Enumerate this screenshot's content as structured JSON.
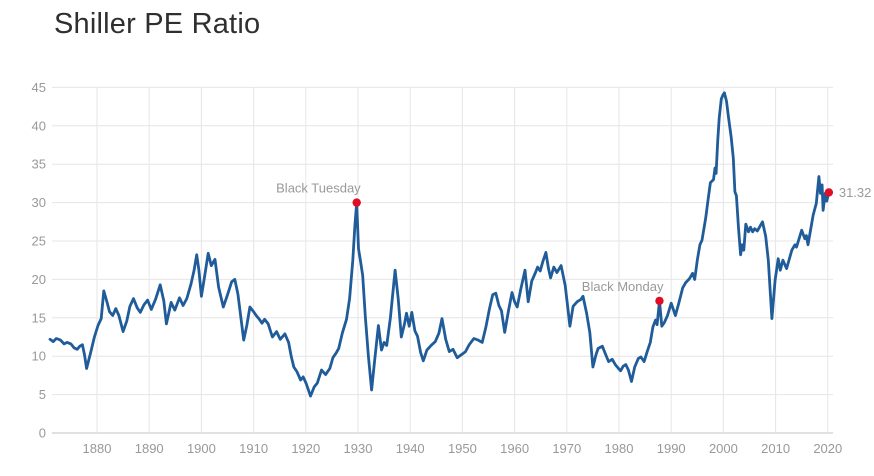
{
  "title": "Shiller PE Ratio",
  "colors": {
    "line": "#1f5c99",
    "marker": "#e00d25",
    "grid": "#e6e6e6",
    "axis_line": "#c3c3c3",
    "tick_label": "#999999",
    "annotation_text": "#999999",
    "title_text": "#2f2f2f",
    "background": "#ffffff"
  },
  "chart_data": {
    "type": "line",
    "title": "Shiller PE Ratio",
    "xlabel": "",
    "ylabel": "",
    "xlim": [
      1871,
      2021.5
    ],
    "ylim": [
      0,
      45
    ],
    "x_ticks": [
      1880,
      1890,
      1900,
      1910,
      1920,
      1930,
      1940,
      1950,
      1960,
      1970,
      1980,
      1990,
      2000,
      2010,
      2020
    ],
    "y_ticks": [
      0,
      5,
      10,
      15,
      20,
      25,
      30,
      35,
      40,
      45
    ],
    "grid": true,
    "legend": "none",
    "last_value_label": "31.32",
    "annotations": [
      {
        "label": "Black Tuesday",
        "year": 1929.75,
        "value": 30.0,
        "anchor": "above-left"
      },
      {
        "label": "Black Monday",
        "year": 1987.75,
        "value": 17.2,
        "anchor": "above-left"
      },
      {
        "label": "31.32",
        "year": 2020.2,
        "value": 31.32,
        "anchor": "right"
      }
    ],
    "series": [
      {
        "name": "Shiller PE",
        "points": [
          [
            1871.0,
            12.2
          ],
          [
            1871.6,
            11.9
          ],
          [
            1872.2,
            12.3
          ],
          [
            1873.0,
            12.1
          ],
          [
            1873.7,
            11.6
          ],
          [
            1874.3,
            11.8
          ],
          [
            1875.0,
            11.6
          ],
          [
            1875.6,
            11.1
          ],
          [
            1876.2,
            10.9
          ],
          [
            1876.7,
            11.3
          ],
          [
            1877.2,
            11.5
          ],
          [
            1877.6,
            10.2
          ],
          [
            1878.0,
            8.4
          ],
          [
            1878.8,
            10.5
          ],
          [
            1879.5,
            12.5
          ],
          [
            1880.2,
            14.0
          ],
          [
            1880.8,
            14.9
          ],
          [
            1881.3,
            18.5
          ],
          [
            1881.9,
            17.1
          ],
          [
            1882.4,
            15.8
          ],
          [
            1883.0,
            15.3
          ],
          [
            1883.6,
            16.2
          ],
          [
            1884.2,
            15.3
          ],
          [
            1885.0,
            13.2
          ],
          [
            1885.7,
            14.6
          ],
          [
            1886.3,
            16.5
          ],
          [
            1887.0,
            17.5
          ],
          [
            1887.7,
            16.3
          ],
          [
            1888.3,
            15.7
          ],
          [
            1889.0,
            16.7
          ],
          [
            1889.7,
            17.3
          ],
          [
            1890.4,
            16.1
          ],
          [
            1891.2,
            17.4
          ],
          [
            1892.1,
            19.3
          ],
          [
            1892.8,
            17.2
          ],
          [
            1893.3,
            14.2
          ],
          [
            1894.2,
            17.0
          ],
          [
            1894.9,
            16.0
          ],
          [
            1895.8,
            17.6
          ],
          [
            1896.5,
            16.6
          ],
          [
            1897.2,
            17.5
          ],
          [
            1898.0,
            19.4
          ],
          [
            1898.6,
            21.2
          ],
          [
            1899.1,
            23.2
          ],
          [
            1899.5,
            21.3
          ],
          [
            1900.0,
            17.8
          ],
          [
            1900.6,
            20.3
          ],
          [
            1901.3,
            23.4
          ],
          [
            1901.9,
            21.8
          ],
          [
            1902.6,
            22.6
          ],
          [
            1903.3,
            19.0
          ],
          [
            1904.2,
            16.4
          ],
          [
            1904.9,
            17.8
          ],
          [
            1905.8,
            19.7
          ],
          [
            1906.4,
            20.0
          ],
          [
            1907.0,
            18.1
          ],
          [
            1907.6,
            14.8
          ],
          [
            1908.1,
            12.1
          ],
          [
            1908.7,
            14.0
          ],
          [
            1909.3,
            16.4
          ],
          [
            1910.0,
            15.8
          ],
          [
            1910.5,
            15.3
          ],
          [
            1911.0,
            14.9
          ],
          [
            1911.6,
            14.3
          ],
          [
            1912.1,
            14.8
          ],
          [
            1912.8,
            14.2
          ],
          [
            1913.6,
            12.5
          ],
          [
            1914.4,
            13.2
          ],
          [
            1915.1,
            12.2
          ],
          [
            1916.0,
            12.9
          ],
          [
            1916.7,
            11.8
          ],
          [
            1917.2,
            10.0
          ],
          [
            1917.7,
            8.6
          ],
          [
            1918.3,
            8.0
          ],
          [
            1919.0,
            6.9
          ],
          [
            1919.5,
            7.3
          ],
          [
            1920.1,
            6.4
          ],
          [
            1920.9,
            4.8
          ],
          [
            1921.6,
            6.0
          ],
          [
            1922.2,
            6.5
          ],
          [
            1923.0,
            8.2
          ],
          [
            1923.8,
            7.6
          ],
          [
            1924.6,
            8.4
          ],
          [
            1925.2,
            9.8
          ],
          [
            1925.8,
            10.4
          ],
          [
            1926.3,
            11.0
          ],
          [
            1927.0,
            13.0
          ],
          [
            1927.8,
            14.8
          ],
          [
            1928.4,
            17.5
          ],
          [
            1929.0,
            22.5
          ],
          [
            1929.4,
            27.0
          ],
          [
            1929.75,
            30.0
          ],
          [
            1930.1,
            24.0
          ],
          [
            1930.5,
            22.3
          ],
          [
            1930.9,
            20.5
          ],
          [
            1931.4,
            15.2
          ],
          [
            1932.0,
            10.0
          ],
          [
            1932.6,
            5.6
          ],
          [
            1933.2,
            9.5
          ],
          [
            1933.9,
            14.0
          ],
          [
            1934.5,
            10.8
          ],
          [
            1935.0,
            11.8
          ],
          [
            1935.5,
            11.4
          ],
          [
            1936.2,
            15.0
          ],
          [
            1937.1,
            21.2
          ],
          [
            1937.7,
            17.5
          ],
          [
            1938.3,
            12.5
          ],
          [
            1938.9,
            14.2
          ],
          [
            1939.3,
            15.6
          ],
          [
            1939.8,
            13.9
          ],
          [
            1940.3,
            15.7
          ],
          [
            1940.9,
            13.3
          ],
          [
            1941.4,
            12.6
          ],
          [
            1942.0,
            10.5
          ],
          [
            1942.5,
            9.4
          ],
          [
            1943.2,
            10.8
          ],
          [
            1944.0,
            11.4
          ],
          [
            1944.8,
            11.9
          ],
          [
            1945.5,
            13.0
          ],
          [
            1946.1,
            14.9
          ],
          [
            1946.8,
            12.2
          ],
          [
            1947.5,
            10.6
          ],
          [
            1948.2,
            10.9
          ],
          [
            1949.0,
            9.8
          ],
          [
            1949.8,
            10.2
          ],
          [
            1950.6,
            10.6
          ],
          [
            1951.3,
            11.5
          ],
          [
            1952.2,
            12.3
          ],
          [
            1953.0,
            12.1
          ],
          [
            1953.8,
            11.8
          ],
          [
            1954.5,
            13.8
          ],
          [
            1955.2,
            16.2
          ],
          [
            1955.8,
            18.0
          ],
          [
            1956.4,
            18.2
          ],
          [
            1957.0,
            16.6
          ],
          [
            1957.5,
            15.9
          ],
          [
            1958.1,
            13.1
          ],
          [
            1958.8,
            15.8
          ],
          [
            1959.5,
            18.3
          ],
          [
            1960.0,
            17.1
          ],
          [
            1960.5,
            16.4
          ],
          [
            1961.2,
            18.8
          ],
          [
            1962.0,
            21.2
          ],
          [
            1962.6,
            17.1
          ],
          [
            1963.3,
            19.8
          ],
          [
            1964.0,
            20.9
          ],
          [
            1964.4,
            21.6
          ],
          [
            1964.9,
            21.1
          ],
          [
            1965.4,
            22.3
          ],
          [
            1966.0,
            23.5
          ],
          [
            1966.5,
            21.4
          ],
          [
            1966.9,
            20.2
          ],
          [
            1967.5,
            21.6
          ],
          [
            1968.1,
            20.9
          ],
          [
            1968.9,
            21.8
          ],
          [
            1969.7,
            19.2
          ],
          [
            1970.2,
            16.3
          ],
          [
            1970.6,
            13.9
          ],
          [
            1971.2,
            16.5
          ],
          [
            1972.0,
            17.1
          ],
          [
            1972.7,
            17.4
          ],
          [
            1973.1,
            17.8
          ],
          [
            1973.8,
            15.6
          ],
          [
            1974.4,
            13.1
          ],
          [
            1975.0,
            8.6
          ],
          [
            1975.6,
            10.2
          ],
          [
            1976.0,
            11.0
          ],
          [
            1976.8,
            11.3
          ],
          [
            1977.4,
            10.3
          ],
          [
            1978.0,
            9.3
          ],
          [
            1978.7,
            9.6
          ],
          [
            1979.3,
            8.9
          ],
          [
            1979.9,
            8.4
          ],
          [
            1980.3,
            8.1
          ],
          [
            1980.8,
            8.7
          ],
          [
            1981.3,
            8.9
          ],
          [
            1981.8,
            8.2
          ],
          [
            1982.4,
            6.7
          ],
          [
            1983.0,
            8.6
          ],
          [
            1983.7,
            9.7
          ],
          [
            1984.2,
            9.9
          ],
          [
            1984.8,
            9.3
          ],
          [
            1985.4,
            10.6
          ],
          [
            1986.0,
            11.8
          ],
          [
            1986.5,
            13.8
          ],
          [
            1987.0,
            14.7
          ],
          [
            1987.3,
            14.1
          ],
          [
            1987.75,
            17.2
          ],
          [
            1988.2,
            13.9
          ],
          [
            1988.7,
            14.4
          ],
          [
            1989.3,
            15.3
          ],
          [
            1990.0,
            16.9
          ],
          [
            1990.8,
            15.3
          ],
          [
            1991.5,
            17.0
          ],
          [
            1992.2,
            18.9
          ],
          [
            1992.8,
            19.6
          ],
          [
            1993.5,
            20.1
          ],
          [
            1994.1,
            20.8
          ],
          [
            1994.5,
            20.0
          ],
          [
            1995.0,
            22.5
          ],
          [
            1995.5,
            24.5
          ],
          [
            1995.9,
            25.1
          ],
          [
            1996.6,
            28.0
          ],
          [
            1997.1,
            30.6
          ],
          [
            1997.5,
            32.6
          ],
          [
            1998.1,
            33.0
          ],
          [
            1998.4,
            34.5
          ],
          [
            1998.6,
            33.8
          ],
          [
            1998.9,
            38.0
          ],
          [
            1999.2,
            41.0
          ],
          [
            1999.6,
            43.5
          ],
          [
            1999.9,
            44.0
          ],
          [
            2000.2,
            44.3
          ],
          [
            2000.6,
            43.2
          ],
          [
            2001.0,
            41.0
          ],
          [
            2001.5,
            38.5
          ],
          [
            2001.9,
            35.8
          ],
          [
            2002.2,
            31.4
          ],
          [
            2002.5,
            30.9
          ],
          [
            2002.9,
            26.7
          ],
          [
            2003.3,
            23.2
          ],
          [
            2003.6,
            24.5
          ],
          [
            2003.9,
            23.8
          ],
          [
            2004.3,
            27.2
          ],
          [
            2004.8,
            26.2
          ],
          [
            2005.2,
            26.8
          ],
          [
            2005.6,
            26.2
          ],
          [
            2006.0,
            26.6
          ],
          [
            2006.5,
            26.3
          ],
          [
            2007.0,
            26.9
          ],
          [
            2007.5,
            27.5
          ],
          [
            2008.1,
            25.6
          ],
          [
            2008.6,
            22.5
          ],
          [
            2009.3,
            14.9
          ],
          [
            2009.9,
            19.9
          ],
          [
            2010.5,
            22.7
          ],
          [
            2010.9,
            21.2
          ],
          [
            2011.4,
            22.5
          ],
          [
            2012.1,
            21.4
          ],
          [
            2013.1,
            23.8
          ],
          [
            2013.7,
            24.5
          ],
          [
            2014.0,
            24.2
          ],
          [
            2015.0,
            26.4
          ],
          [
            2015.6,
            25.3
          ],
          [
            2015.9,
            25.7
          ],
          [
            2016.2,
            24.5
          ],
          [
            2017.2,
            28.4
          ],
          [
            2017.8,
            29.9
          ],
          [
            2018.3,
            33.4
          ],
          [
            2018.6,
            31.2
          ],
          [
            2018.9,
            32.3
          ],
          [
            2019.1,
            29.0
          ],
          [
            2019.5,
            31.2
          ],
          [
            2019.8,
            30.2
          ],
          [
            2020.2,
            31.32
          ]
        ]
      }
    ]
  }
}
